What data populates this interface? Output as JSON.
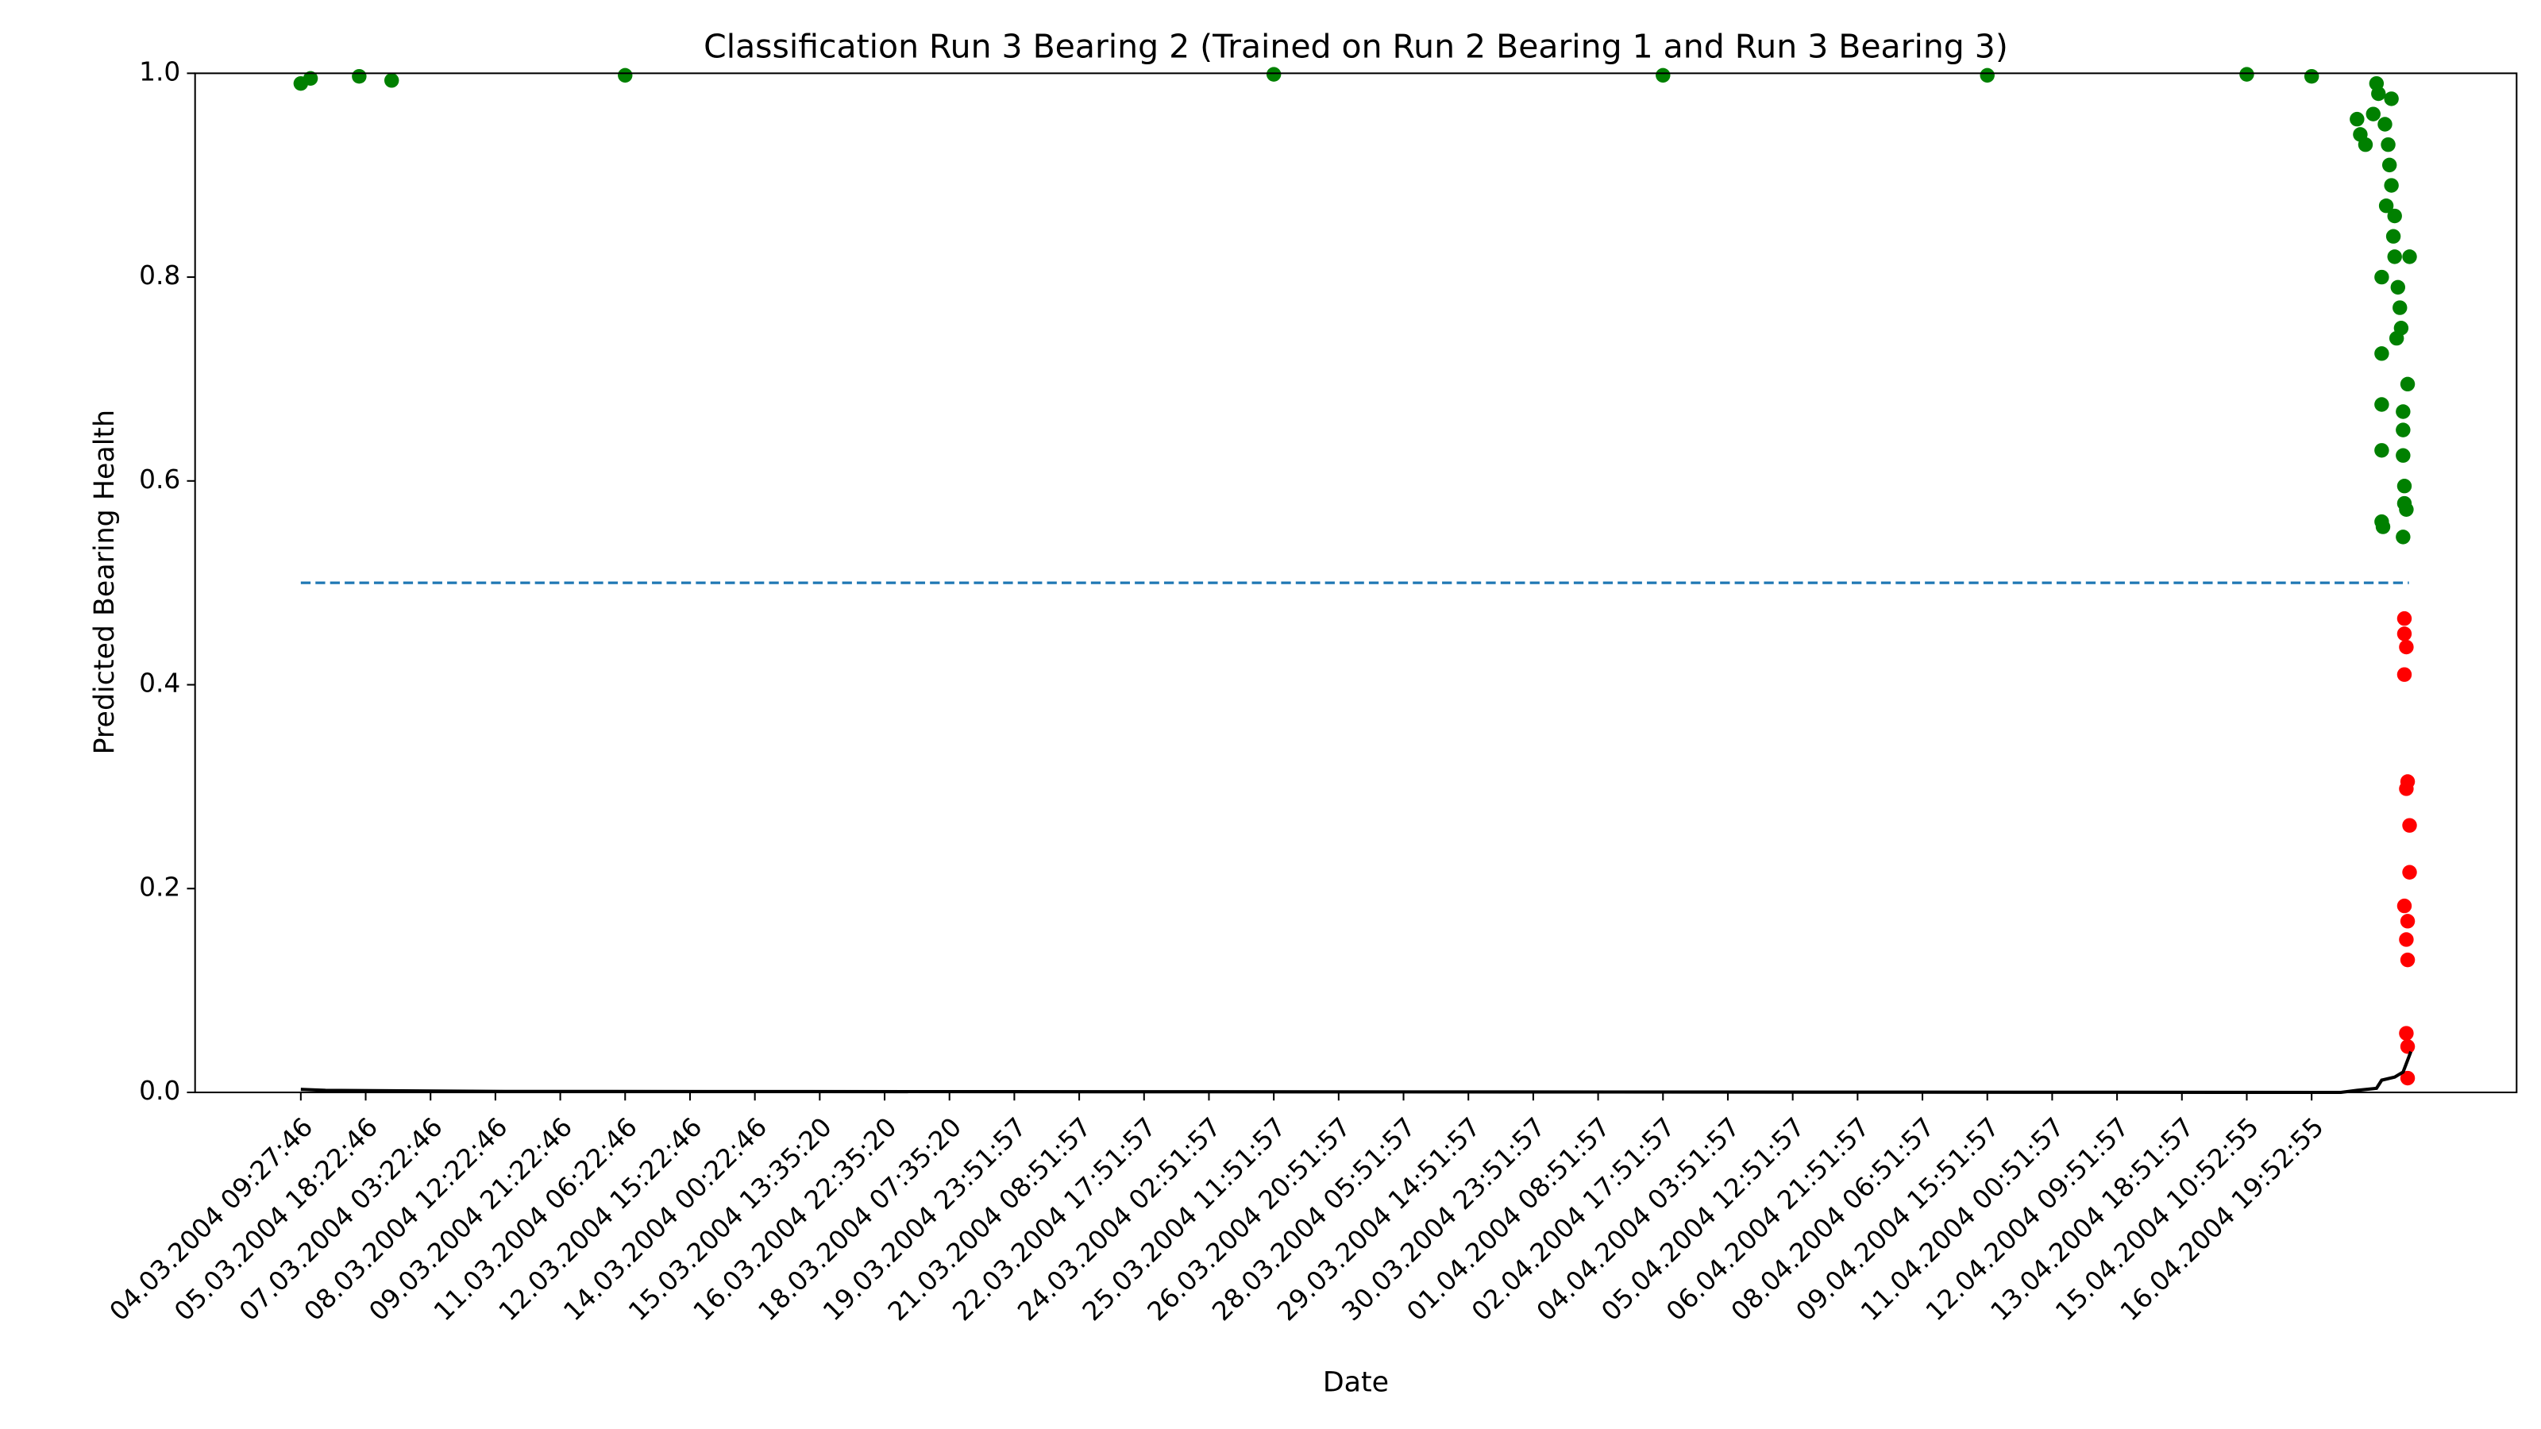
{
  "chart_data": {
    "type": "scatter",
    "title": "Classification Run 3 Bearing 2 (Trained on Run 2 Bearing 1 and Run 3 Bearing 3)",
    "x_label": "Date",
    "y_label": "Predicted Bearing Health",
    "xlim": [
      -163,
      3416
    ],
    "ylim": [
      0,
      1
    ],
    "xticks": [
      {
        "value": 0,
        "label": "04.03.2004 09:27:46"
      },
      {
        "value": 100,
        "label": "05.03.2004 18:22:46"
      },
      {
        "value": 200,
        "label": "07.03.2004 03:22:46"
      },
      {
        "value": 300,
        "label": "08.03.2004 12:22:46"
      },
      {
        "value": 400,
        "label": "09.03.2004 21:22:46"
      },
      {
        "value": 500,
        "label": "11.03.2004 06:22:46"
      },
      {
        "value": 600,
        "label": "12.03.2004 15:22:46"
      },
      {
        "value": 700,
        "label": "14.03.2004 00:22:46"
      },
      {
        "value": 800,
        "label": "15.03.2004 13:35:20"
      },
      {
        "value": 900,
        "label": "16.03.2004 22:35:20"
      },
      {
        "value": 1000,
        "label": "18.03.2004 07:35:20"
      },
      {
        "value": 1100,
        "label": "19.03.2004 23:51:57"
      },
      {
        "value": 1200,
        "label": "21.03.2004 08:51:57"
      },
      {
        "value": 1300,
        "label": "22.03.2004 17:51:57"
      },
      {
        "value": 1400,
        "label": "24.03.2004 02:51:57"
      },
      {
        "value": 1500,
        "label": "25.03.2004 11:51:57"
      },
      {
        "value": 1600,
        "label": "26.03.2004 20:51:57"
      },
      {
        "value": 1700,
        "label": "28.03.2004 05:51:57"
      },
      {
        "value": 1800,
        "label": "29.03.2004 14:51:57"
      },
      {
        "value": 1900,
        "label": "30.03.2004 23:51:57"
      },
      {
        "value": 2000,
        "label": "01.04.2004 08:51:57"
      },
      {
        "value": 2100,
        "label": "02.04.2004 17:51:57"
      },
      {
        "value": 2200,
        "label": "04.04.2004 03:51:57"
      },
      {
        "value": 2300,
        "label": "05.04.2004 12:51:57"
      },
      {
        "value": 2400,
        "label": "06.04.2004 21:51:57"
      },
      {
        "value": 2500,
        "label": "08.04.2004 06:51:57"
      },
      {
        "value": 2600,
        "label": "09.04.2004 15:51:57"
      },
      {
        "value": 2700,
        "label": "11.04.2004 00:51:57"
      },
      {
        "value": 2800,
        "label": "12.04.2004 09:51:57"
      },
      {
        "value": 2900,
        "label": "13.04.2004 18:51:57"
      },
      {
        "value": 3000,
        "label": "15.04.2004 10:52:55"
      },
      {
        "value": 3100,
        "label": "16.04.2004 19:52:55"
      }
    ],
    "yticks": [
      {
        "value": 0,
        "label": "0.0"
      },
      {
        "value": 0.2,
        "label": "0.2"
      },
      {
        "value": 0.4,
        "label": "0.4"
      },
      {
        "value": 0.6,
        "label": "0.6"
      },
      {
        "value": 0.8,
        "label": "0.8"
      },
      {
        "value": 1,
        "label": "1.0"
      }
    ],
    "series": [
      {
        "type": "scatter",
        "color": "green",
        "x": [
          0,
          15,
          90,
          140,
          500,
          1500,
          2100,
          2600,
          3000,
          3100,
          3170,
          3175,
          3183,
          3195,
          3200,
          3203,
          3208,
          3208,
          3208,
          3208,
          3208,
          3210,
          3213,
          3215,
          3218,
          3220,
          3223,
          3223,
          3226,
          3228,
          3228,
          3231,
          3233,
          3236,
          3238,
          3241,
          3241,
          3241,
          3241,
          3243,
          3243,
          3246,
          3248,
          3251
        ],
        "values": [
          0.99,
          0.995,
          0.997,
          0.993,
          0.998,
          0.999,
          0.998,
          0.998,
          0.999,
          0.997,
          0.955,
          0.94,
          0.93,
          0.96,
          0.99,
          0.98,
          0.8,
          0.725,
          0.675,
          0.63,
          0.56,
          0.555,
          0.95,
          0.87,
          0.93,
          0.91,
          0.975,
          0.89,
          0.84,
          0.82,
          0.86,
          0.74,
          0.79,
          0.77,
          0.75,
          0.668,
          0.65,
          0.625,
          0.545,
          0.595,
          0.578,
          0.572,
          0.695,
          0.82
        ]
      },
      {
        "type": "scatter",
        "color": "red",
        "x": [
          3243,
          3243,
          3246,
          3243,
          3248,
          3246,
          3251,
          3251,
          3243,
          3248,
          3246,
          3248,
          3246,
          3248,
          3248
        ],
        "values": [
          0.465,
          0.45,
          0.437,
          0.41,
          0.305,
          0.298,
          0.262,
          0.216,
          0.183,
          0.168,
          0.15,
          0.13,
          0.058,
          0.045,
          0.014
        ]
      },
      {
        "type": "line",
        "color": "black",
        "x": [
          0,
          38,
          288,
          3145,
          3170,
          3200,
          3208,
          3228,
          3241,
          3253
        ],
        "values": [
          0.003,
          0.002,
          0.001,
          0,
          0.002,
          0.004,
          0.012,
          0.015,
          0.02,
          0.04
        ]
      },
      {
        "type": "line",
        "color": "#1f77b4",
        "dashed": true,
        "x": [
          0,
          3250
        ],
        "values": [
          0.5,
          0.5
        ]
      }
    ]
  }
}
